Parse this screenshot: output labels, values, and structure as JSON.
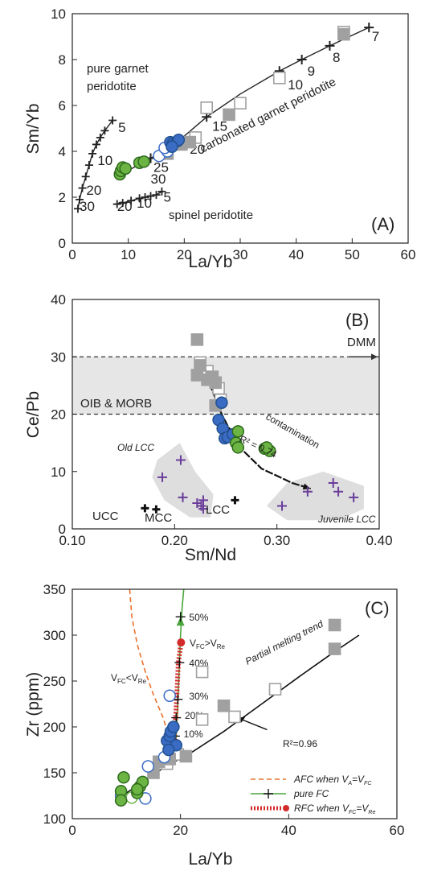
{
  "colors": {
    "gray_square": "#a0a0a0",
    "blue": "#3b6cc4",
    "blue_dark": "#22508f",
    "green": "#6cb544",
    "green_dark": "#2e6a1e",
    "purple": "#6a3d9a",
    "red": "#d42a2a",
    "orange": "#e8702a",
    "pure_fc_green": "#4aa63c",
    "band_gray": "#e6e6e6"
  },
  "chart_data": [
    {
      "type": "scatter",
      "panel": "(A)",
      "xlabel": "La/Yb",
      "ylabel": "Sm/Yb",
      "xlim": [
        0,
        60
      ],
      "ylim": [
        0,
        10
      ],
      "xticks": [
        "0",
        "10",
        "20",
        "30",
        "40",
        "50",
        "60"
      ],
      "yticks": [
        "0",
        "2",
        "4",
        "6",
        "8",
        "10"
      ],
      "labels": {
        "garnet": "pure garnet\nperidotite",
        "spinel": "spinel peridotite",
        "carbonated": "carbonated garnet peridotite"
      },
      "curves": {
        "garnet": [
          [
            1,
            1.5
          ],
          [
            1.3,
            1.9
          ],
          [
            1.8,
            2.4
          ],
          [
            2.4,
            2.9
          ],
          [
            3,
            3.4
          ],
          [
            3.6,
            3.9
          ],
          [
            4.3,
            4.3
          ],
          [
            5,
            4.6
          ],
          [
            5.8,
            4.9
          ],
          [
            7.2,
            5.35
          ]
        ],
        "spinel": [
          [
            8,
            1.7
          ],
          [
            9,
            1.75
          ],
          [
            10.5,
            1.85
          ],
          [
            12,
            1.95
          ],
          [
            13,
            2.0
          ],
          [
            14,
            2.05
          ],
          [
            15,
            2.1
          ],
          [
            16,
            2.25
          ]
        ],
        "carbonated": [
          [
            8,
            2.9
          ],
          [
            11,
            3.3
          ],
          [
            14,
            3.7
          ],
          [
            18,
            4.25
          ],
          [
            24,
            5.5
          ],
          [
            30,
            6.5
          ],
          [
            37,
            7.5
          ],
          [
            41,
            8.0
          ],
          [
            46,
            8.6
          ],
          [
            53,
            9.4
          ]
        ]
      },
      "curve_labels": [
        {
          "text": "5",
          "x": 8.2,
          "y": 4.85
        },
        {
          "text": "10",
          "x": 4.5,
          "y": 3.4
        },
        {
          "text": "20",
          "x": 2.5,
          "y": 2.1
        },
        {
          "text": "30",
          "x": 1.3,
          "y": 1.4
        },
        {
          "text": "5",
          "x": 16.3,
          "y": 1.8
        },
        {
          "text": "10",
          "x": 11.5,
          "y": 1.55
        },
        {
          "text": "20",
          "x": 8.0,
          "y": 1.4
        },
        {
          "text": "30",
          "x": 14,
          "y": 2.6
        },
        {
          "text": "25",
          "x": 14.5,
          "y": 3.1
        },
        {
          "text": "20",
          "x": 21,
          "y": 3.9
        },
        {
          "text": "15",
          "x": 25,
          "y": 4.9
        },
        {
          "text": "10",
          "x": 38.5,
          "y": 6.7
        },
        {
          "text": "9",
          "x": 42,
          "y": 7.3
        },
        {
          "text": "8",
          "x": 46.5,
          "y": 7.9
        },
        {
          "text": "7",
          "x": 53.5,
          "y": 8.8
        }
      ],
      "gray_filled": [
        [
          48.5,
          9.1
        ],
        [
          28,
          5.6
        ],
        [
          21,
          4.4
        ],
        [
          19.5,
          4.3
        ],
        [
          17,
          3.9
        ]
      ],
      "gray_open": [
        [
          48.5,
          9.2
        ],
        [
          37,
          7.2
        ],
        [
          30,
          6.1
        ],
        [
          24,
          5.9
        ],
        [
          22,
          4.6
        ]
      ],
      "blue_filled": [
        [
          17.5,
          4.4
        ],
        [
          18,
          4.35
        ],
        [
          18.8,
          4.45
        ],
        [
          19,
          4.5
        ],
        [
          17.8,
          4.2
        ]
      ],
      "blue_open": [
        [
          15.5,
          3.8
        ],
        [
          17,
          4.0
        ],
        [
          16.5,
          4.15
        ]
      ],
      "green_filled": [
        [
          8.5,
          3.0
        ],
        [
          8.7,
          3.15
        ],
        [
          9,
          3.3
        ],
        [
          9.5,
          3.25
        ],
        [
          12,
          3.5
        ],
        [
          12.8,
          3.55
        ]
      ]
    },
    {
      "type": "scatter",
      "panel": "(B)",
      "xlabel": "Sm/Nd",
      "ylabel": "Ce/Pb",
      "xlim": [
        0.1,
        0.4
      ],
      "ylim": [
        0,
        40
      ],
      "xticks": [
        "0.10",
        "0.20",
        "0.30",
        "0.40"
      ],
      "yticks": [
        "0",
        "10",
        "20",
        "30",
        "40"
      ],
      "band": [
        20,
        30
      ],
      "labels": {
        "oib": "OIB & MORB",
        "dmm": "DMM",
        "contamination": "contamination",
        "r2": "R² = 0.74",
        "old_lcc": "Old LCC",
        "juvenile_lcc": "Juvenile  LCC",
        "ucc": "UCC",
        "mcc": "MCC",
        "lcc": "LCC"
      },
      "trend": [
        [
          0.222,
          30
        ],
        [
          0.235,
          25
        ],
        [
          0.246,
          20
        ],
        [
          0.262,
          14.5
        ],
        [
          0.285,
          10.5
        ],
        [
          0.315,
          8.0
        ],
        [
          0.333,
          7.0
        ]
      ],
      "gray_filled": [
        [
          0.222,
          33
        ],
        [
          0.222,
          26.8
        ],
        [
          0.225,
          28.5
        ],
        [
          0.232,
          26
        ],
        [
          0.236,
          26.5
        ],
        [
          0.24,
          25.5
        ],
        [
          0.24,
          21.5
        ]
      ],
      "gray_open": [
        [
          0.225,
          29
        ],
        [
          0.232,
          27.5
        ],
        [
          0.237,
          26.5
        ],
        [
          0.243,
          24.5
        ],
        [
          0.245,
          22.5
        ]
      ],
      "blue_filled": [
        [
          0.246,
          22
        ],
        [
          0.243,
          19
        ],
        [
          0.247,
          17.5
        ],
        [
          0.249,
          15.8
        ],
        [
          0.252,
          16
        ],
        [
          0.257,
          16.5
        ]
      ],
      "green_filled": [
        [
          0.26,
          15
        ],
        [
          0.262,
          14.2
        ],
        [
          0.262,
          17.0
        ],
        [
          0.288,
          14.0
        ],
        [
          0.293,
          13.6
        ],
        [
          0.29,
          14.2
        ]
      ],
      "purple_plus": [
        [
          0.188,
          9
        ],
        [
          0.206,
          12
        ],
        [
          0.208,
          5.5
        ],
        [
          0.222,
          4.5
        ],
        [
          0.228,
          5
        ],
        [
          0.228,
          3.5
        ],
        [
          0.226,
          4.0
        ],
        [
          0.305,
          4.0
        ],
        [
          0.33,
          6.5
        ],
        [
          0.355,
          8.0
        ],
        [
          0.36,
          6.5
        ],
        [
          0.375,
          5.5
        ]
      ],
      "black_plus": [
        [
          0.171,
          3.6
        ],
        [
          0.182,
          3.4
        ],
        [
          0.259,
          5.0
        ]
      ],
      "old_lcc_blob": [
        [
          0.183,
          12
        ],
        [
          0.205,
          15
        ],
        [
          0.22,
          10
        ],
        [
          0.238,
          6
        ],
        [
          0.235,
          2
        ],
        [
          0.215,
          2
        ],
        [
          0.19,
          5
        ],
        [
          0.178,
          9
        ]
      ],
      "juvenile_blob": [
        [
          0.29,
          4
        ],
        [
          0.31,
          8
        ],
        [
          0.345,
          10
        ],
        [
          0.385,
          7.5
        ],
        [
          0.385,
          3.5
        ],
        [
          0.36,
          1.5
        ],
        [
          0.31,
          1.5
        ]
      ]
    },
    {
      "type": "line",
      "panel": "(C)",
      "xlabel": "La/Yb",
      "ylabel": "Zr (ppm)",
      "xlim": [
        0,
        60
      ],
      "ylim": [
        100,
        350
      ],
      "xticks": [
        "0",
        "20",
        "40",
        "60"
      ],
      "yticks": [
        "100",
        "150",
        "200",
        "250",
        "300",
        "350"
      ],
      "labels": {
        "partial": "Partial melting trend",
        "r2": "R²=0.96",
        "vfc_lt": "V",
        "vfc_lt_sub1": "FC",
        "vfc_lt_mid": "<V",
        "vfc_lt_sub2": "Re",
        "vfc_gt": "V",
        "vfc_gt_sub1": "FC",
        "vfc_gt_mid": ">V",
        "vfc_gt_sub2": "Re"
      },
      "percent_labels": [
        {
          "text": "50%",
          "x": 21,
          "y": 320
        },
        {
          "text": "40%",
          "x": 21,
          "y": 270
        },
        {
          "text": "30%",
          "x": 21,
          "y": 234
        },
        {
          "text": "20%",
          "x": 20.2,
          "y": 213
        },
        {
          "text": "10%",
          "x": 20,
          "y": 193
        }
      ],
      "partial_melting": [
        [
          10,
          128
        ],
        [
          13,
          140
        ],
        [
          17,
          156
        ],
        [
          22,
          172
        ],
        [
          28,
          195
        ],
        [
          35,
          225
        ],
        [
          42,
          255
        ],
        [
          48,
          280
        ],
        [
          53,
          300
        ]
      ],
      "afc": [
        [
          10.6,
          350
        ],
        [
          11,
          320
        ],
        [
          12,
          290
        ],
        [
          13.5,
          260
        ],
        [
          15,
          235
        ],
        [
          16.8,
          210
        ],
        [
          18.3,
          180
        ],
        [
          19,
          160
        ]
      ],
      "pure_fc": [
        [
          19,
          170
        ],
        [
          19.3,
          200
        ],
        [
          19.6,
          240
        ],
        [
          19.8,
          270
        ],
        [
          20,
          300
        ],
        [
          20.3,
          330
        ],
        [
          20.6,
          350
        ]
      ],
      "rfc": [
        [
          18.7,
          176
        ],
        [
          19.2,
          220
        ],
        [
          19.6,
          270
        ],
        [
          20.1,
          292
        ]
      ],
      "gray_filled": [
        [
          48.5,
          311
        ],
        [
          48.5,
          285
        ],
        [
          28,
          223
        ],
        [
          21,
          168
        ],
        [
          15,
          150
        ],
        [
          18,
          165
        ],
        [
          16,
          162
        ]
      ],
      "gray_open": [
        [
          37.5,
          241
        ],
        [
          30,
          211
        ],
        [
          24,
          260
        ],
        [
          24,
          208
        ],
        [
          19.5,
          170
        ],
        [
          17.5,
          160
        ]
      ],
      "blue_filled": [
        [
          17.5,
          185
        ],
        [
          18,
          190
        ],
        [
          18.2,
          195
        ],
        [
          18.7,
          200
        ],
        [
          19.2,
          180
        ],
        [
          17.8,
          175
        ]
      ],
      "blue_open": [
        [
          17,
          167
        ],
        [
          14,
          157
        ],
        [
          18,
          234
        ],
        [
          13.5,
          122
        ],
        [
          9,
          125
        ]
      ],
      "green_filled": [
        [
          9,
          130
        ],
        [
          9,
          120
        ],
        [
          9.5,
          145
        ],
        [
          12,
          128
        ],
        [
          12.5,
          135
        ],
        [
          13,
          140
        ],
        [
          12,
          132
        ]
      ],
      "green_open": [
        [
          11,
          123
        ]
      ],
      "legend": [
        {
          "style": "afc",
          "text": "AFC when V",
          "sub1": "A",
          "mid": "=V",
          "sub2": "FC"
        },
        {
          "style": "pure_fc",
          "text": "pure FC",
          "sub1": "",
          "mid": "",
          "sub2": ""
        },
        {
          "style": "rfc",
          "text": "RFC when V",
          "sub1": "FC",
          "mid": "=V",
          "sub2": "Re"
        }
      ]
    }
  ]
}
